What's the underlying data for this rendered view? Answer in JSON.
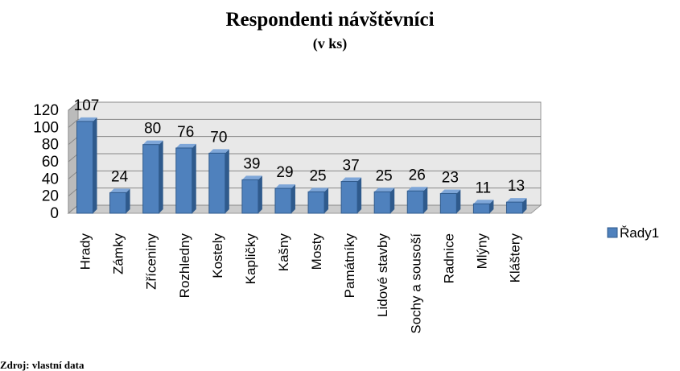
{
  "chart_data": {
    "type": "bar",
    "title": "Respondenti návštěvníci",
    "subtitle": "(v ks)",
    "categories": [
      "Hrady",
      "Zámky",
      "Zříceniny",
      "Rozhledny",
      "Kostely",
      "Kapličky",
      "Kašny",
      "Mosty",
      "Památníky",
      "Lidové stavby",
      "Sochy a sousoší",
      "Radnice",
      "Mlýny",
      "Kláštery"
    ],
    "series": [
      {
        "name": "Řady1",
        "color": "#4f81bd",
        "values": [
          107,
          24,
          80,
          76,
          70,
          39,
          29,
          25,
          37,
          25,
          26,
          23,
          11,
          13
        ]
      }
    ],
    "ylim": [
      0,
      120
    ],
    "yticks": [
      0,
      20,
      40,
      60,
      80,
      100,
      120
    ],
    "grid": true,
    "legend": "right",
    "source": "Zdroj: vlastní data"
  }
}
